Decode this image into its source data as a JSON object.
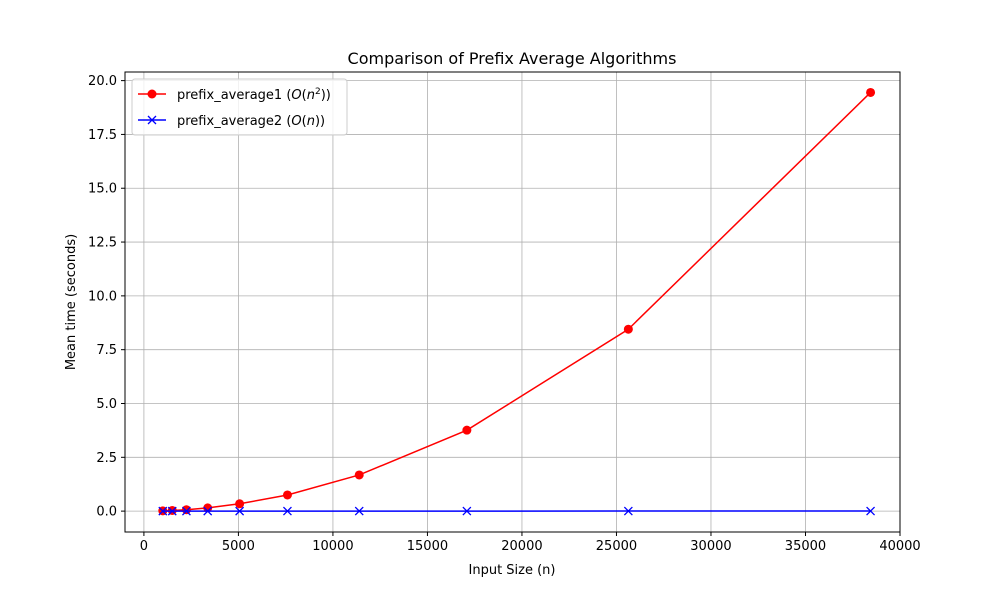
{
  "chart_data": {
    "type": "line",
    "title": "Comparison of Prefix Average Algorithms",
    "xlabel": "Input Size (n)",
    "ylabel": "Mean time (seconds)",
    "xlim": [
      -1000,
      40000
    ],
    "ylim": [
      -0.97,
      20.4
    ],
    "xticks": [
      0,
      5000,
      10000,
      15000,
      20000,
      25000,
      30000,
      35000,
      40000
    ],
    "xtick_labels": [
      "0",
      "5000",
      "10000",
      "15000",
      "20000",
      "25000",
      "30000",
      "35000",
      "40000"
    ],
    "yticks": [
      0,
      2.5,
      5,
      7.5,
      10,
      12.5,
      15,
      17.5,
      20
    ],
    "ytick_labels": [
      "0.0",
      "2.5",
      "5.0",
      "7.5",
      "10.0",
      "12.5",
      "15.0",
      "17.5",
      "20.0"
    ],
    "grid": true,
    "legend_position": "top-left",
    "series": [
      {
        "name": "prefix_average1 (O(n²))",
        "name_parts": {
          "prefix": "prefix_average1 (",
          "math": "O",
          "open": "(",
          "var": "n",
          "sup": "2",
          "close": "))"
        },
        "color": "#ff0000",
        "marker": "circle",
        "x": [
          1000,
          1500,
          2250,
          3375,
          5063,
          7594,
          11391,
          17086,
          25629,
          38443
        ],
        "y": [
          0.013,
          0.03,
          0.065,
          0.15,
          0.34,
          0.75,
          1.68,
          3.76,
          8.45,
          19.45
        ]
      },
      {
        "name": "prefix_average2 (O(n))",
        "name_parts": {
          "prefix": "prefix_average2 (",
          "math": "O",
          "open": "(",
          "var": "n",
          "sup": "",
          "close": "))"
        },
        "color": "#0000ff",
        "marker": "x",
        "x": [
          1000,
          1500,
          2250,
          3375,
          5063,
          7594,
          11391,
          17086,
          25629,
          38443
        ],
        "y": [
          0.0001,
          0.0002,
          0.0003,
          0.0004,
          0.0006,
          0.0009,
          0.0014,
          0.002,
          0.003,
          0.0045
        ]
      }
    ]
  }
}
